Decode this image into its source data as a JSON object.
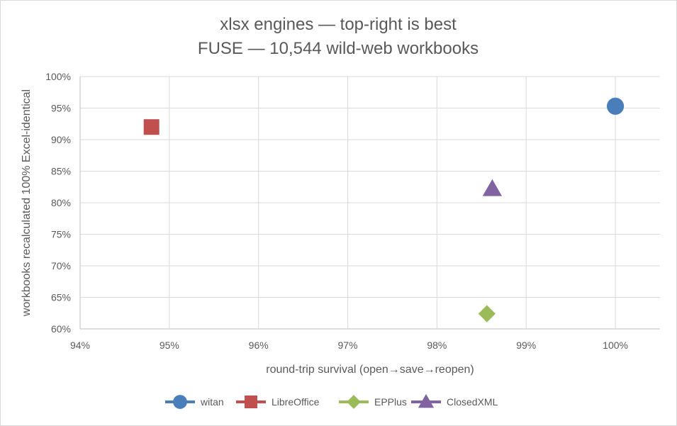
{
  "chart_data": {
    "type": "scatter",
    "title": [
      "xlsx engines — top-right is best",
      "FUSE — 10,544 wild-web workbooks"
    ],
    "xlabel": "round-trip survival (open→save→reopen)",
    "ylabel": "workbooks recalculated 100% Excel-identical",
    "xlim": [
      94,
      100.5
    ],
    "ylim": [
      60,
      100
    ],
    "x_ticks": [
      94,
      95,
      96,
      97,
      98,
      99,
      100
    ],
    "x_tick_labels": [
      "94%",
      "95%",
      "96%",
      "97%",
      "98%",
      "99%",
      "100%"
    ],
    "y_ticks": [
      60,
      65,
      70,
      75,
      80,
      85,
      90,
      95,
      100
    ],
    "y_tick_labels": [
      "60%",
      "65%",
      "70%",
      "75%",
      "80%",
      "85%",
      "90%",
      "95%",
      "100%"
    ],
    "grid": true,
    "legend_position": "bottom",
    "series": [
      {
        "name": "witan",
        "marker": "circle",
        "color": "#4a7ebb",
        "points": [
          {
            "x": 100.0,
            "y": 95.3
          }
        ]
      },
      {
        "name": "LibreOffice",
        "marker": "square",
        "color": "#c0504d",
        "points": [
          {
            "x": 94.8,
            "y": 92.0
          }
        ]
      },
      {
        "name": "EPPlus",
        "marker": "diamond",
        "color": "#9bbb59",
        "points": [
          {
            "x": 98.56,
            "y": 62.4
          }
        ]
      },
      {
        "name": "ClosedXML",
        "marker": "triangle",
        "color": "#8064a2",
        "points": [
          {
            "x": 98.62,
            "y": 82.2
          }
        ]
      }
    ]
  }
}
